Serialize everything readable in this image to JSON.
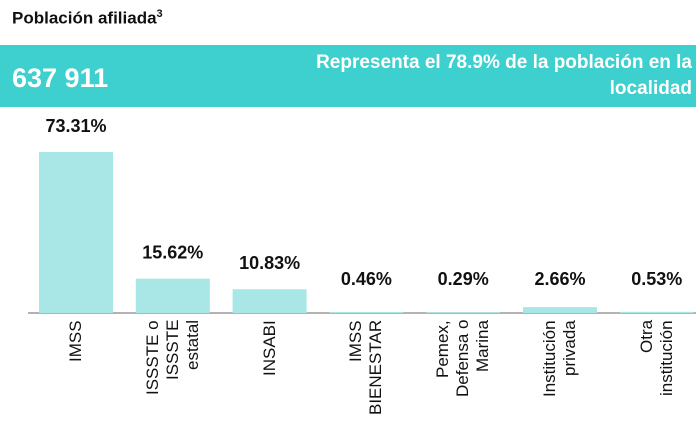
{
  "title": "Población afiliada",
  "title_superscript": "3",
  "banner": {
    "total": "637 911",
    "note": "Representa el 78.9% de la población en la localidad"
  },
  "chart_data": {
    "type": "bar",
    "categories": [
      "IMSS",
      "ISSSTE o ISSSTE estatal",
      "INSABI",
      "IMSS BIENESTAR",
      "Pemex, Defensa o Marina",
      "Institución privada",
      "Otra institución"
    ],
    "values": [
      73.31,
      15.62,
      10.83,
      0.46,
      0.29,
      2.66,
      0.53
    ],
    "value_labels": [
      "73.31%",
      "15.62%",
      "10.83%",
      "0.46%",
      "0.29%",
      "2.66%",
      "0.53%"
    ],
    "color": "#a9e7e7"
  }
}
